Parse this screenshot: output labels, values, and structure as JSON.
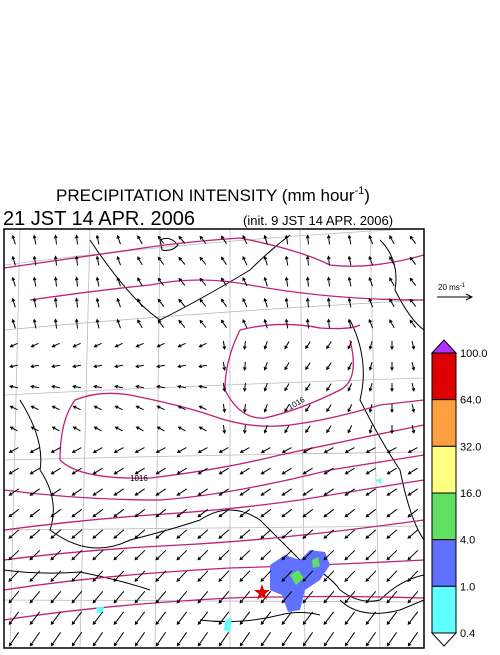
{
  "header": {
    "title": {
      "text": "PRECIPITATION INTENSITY (mm hour",
      "superscript": "-1",
      "suffix": ")"
    },
    "valid_time": "21 JST 14 APR. 2006",
    "init_time": "(init. 9 JST 14 APR. 2006)"
  },
  "vector_legend": {
    "label": "20 ms",
    "superscript": "-1"
  },
  "isobar_labels": [
    "1016",
    "1016"
  ],
  "colorbar": {
    "labels": [
      "100.0",
      "64.0",
      "32.0",
      "16.0",
      "4.0",
      "1.0",
      "0.4"
    ],
    "colors": [
      "#dd0000",
      "#ffa040",
      "#ffff80",
      "#60e060",
      "#6070ff",
      "#60ffff"
    ],
    "over_color": "#b030ff",
    "under_color": "#ffffff"
  }
}
